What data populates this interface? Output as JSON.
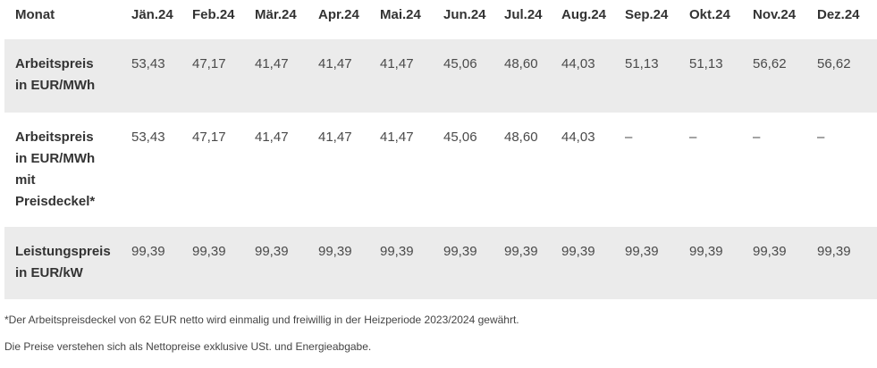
{
  "table": {
    "header_label": "Monat",
    "months": [
      "Jän.24",
      "Feb.24",
      "Mär.24",
      "Apr.24",
      "Mai.24",
      "Jun.24",
      "Jul.24",
      "Aug.24",
      "Sep.24",
      "Okt.24",
      "Nov.24",
      "Dez.24"
    ],
    "rows": [
      {
        "label_lines": [
          "Arbeitspreis",
          "in EUR/MWh"
        ],
        "values": [
          "53,43",
          "47,17",
          "41,47",
          "41,47",
          "41,47",
          "45,06",
          "48,60",
          "44,03",
          "51,13",
          "51,13",
          "56,62",
          "56,62"
        ],
        "shaded": true
      },
      {
        "label_lines": [
          "Arbeitspreis",
          "in EUR/MWh",
          "mit",
          "Preisdeckel*"
        ],
        "values": [
          "53,43",
          "47,17",
          "41,47",
          "41,47",
          "41,47",
          "45,06",
          "48,60",
          "44,03",
          "–",
          "–",
          "–",
          "–"
        ],
        "shaded": false
      },
      {
        "label_lines": [
          "Leistungspreis",
          "in EUR/kW"
        ],
        "values": [
          "99,39",
          "99,39",
          "99,39",
          "99,39",
          "99,39",
          "99,39",
          "99,39",
          "99,39",
          "99,39",
          "99,39",
          "99,39",
          "99,39"
        ],
        "shaded": true
      }
    ]
  },
  "notes": {
    "footnote": "*Der Arbeitspreisdeckel von 62 EUR netto wird einmalig und freiwillig in der Heizperiode 2023/2024 gewährt.",
    "disclaimer": "Die Preise verstehen sich als Nettopreise exklusive USt. und Energieabgabe."
  }
}
